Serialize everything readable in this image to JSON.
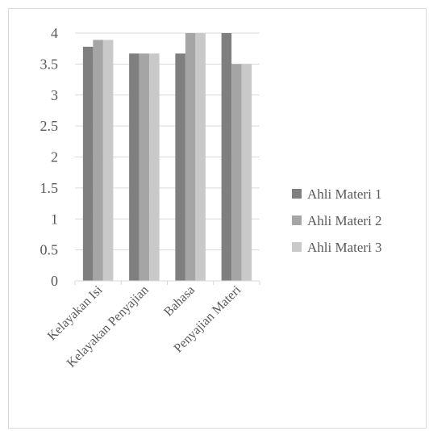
{
  "chart_data": {
    "type": "bar",
    "categories": [
      "Kelayakan Isi",
      "Kelayakan Penyajian",
      "Bahasa",
      "Penyajian Materi"
    ],
    "series": [
      {
        "name": "Ahli Materi 1",
        "color": "#7f7f7f",
        "values": [
          3.78,
          3.67,
          3.67,
          4.0
        ]
      },
      {
        "name": "Ahli Materi 2",
        "color": "#a5a5a5",
        "values": [
          3.89,
          3.67,
          4.0,
          3.5
        ]
      },
      {
        "name": "Ahli Materi 3",
        "color": "#c9c9c9",
        "values": [
          3.89,
          3.67,
          4.0,
          3.5
        ]
      }
    ],
    "yticks": [
      "0",
      "0.5",
      "1",
      "1.5",
      "2",
      "2.5",
      "3",
      "3.5",
      "4"
    ],
    "ylim": [
      0,
      4
    ],
    "grid": true,
    "legend_position": "right"
  }
}
